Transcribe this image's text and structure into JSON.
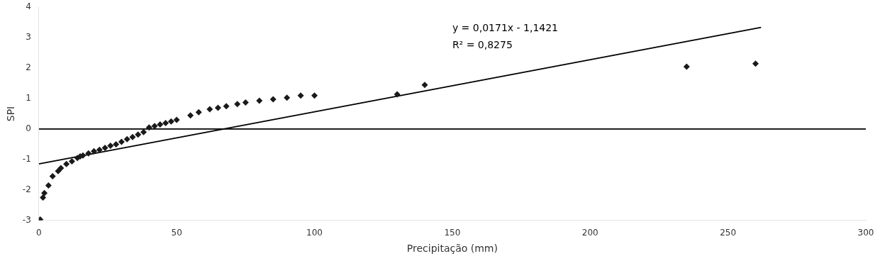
{
  "chart_data": {
    "type": "scatter",
    "xlabel": "Precipitação (mm)",
    "ylabel": "SPI",
    "xlim": [
      0,
      300
    ],
    "ylim": [
      -3,
      4
    ],
    "xticks": [
      0,
      50,
      100,
      150,
      200,
      250,
      300
    ],
    "yticks": [
      -3,
      -2,
      -1,
      0,
      1,
      2,
      3,
      4
    ],
    "grid": false,
    "series": [
      {
        "type": "scatter",
        "color": "#1a1a1a",
        "marker": "diamond",
        "x": [
          0.5,
          1.5,
          2.0,
          3.5,
          5.0,
          7.0,
          8.0,
          10.0,
          12.0,
          14.0,
          15.0,
          16.0,
          18.0,
          20.0,
          22.0,
          24.0,
          26.0,
          28.0,
          30.0,
          32.0,
          34.0,
          36.0,
          38.0,
          40.0,
          42.0,
          44.0,
          46.0,
          48.0,
          50.0,
          55.0,
          58.0,
          62.0,
          65.0,
          68.0,
          72.0,
          75.0,
          80.0,
          85.0,
          90.0,
          95.0,
          100.0,
          130.0,
          140.0,
          235.0,
          260.0
        ],
        "values": [
          -2.97,
          -2.25,
          -2.1,
          -1.85,
          -1.55,
          -1.38,
          -1.28,
          -1.15,
          -1.06,
          -0.95,
          -0.9,
          -0.87,
          -0.8,
          -0.73,
          -0.68,
          -0.62,
          -0.55,
          -0.5,
          -0.42,
          -0.33,
          -0.26,
          -0.18,
          -0.1,
          0.05,
          0.1,
          0.15,
          0.2,
          0.25,
          0.3,
          0.45,
          0.55,
          0.65,
          0.7,
          0.75,
          0.82,
          0.87,
          0.93,
          0.98,
          1.03,
          1.1,
          1.1,
          1.14,
          1.45,
          2.05,
          2.15
        ]
      },
      {
        "type": "line",
        "color": "#000000",
        "line_style": "solid",
        "x": [
          0,
          262
        ],
        "values": [
          -1.1421,
          3.3381
        ]
      },
      {
        "type": "line",
        "color": "#000000",
        "line_style": "solid",
        "x": [
          0,
          300
        ],
        "values": [
          0,
          0
        ]
      }
    ],
    "annotations": [
      {
        "text": "y = 0,0171x - 1,1421",
        "x": 150,
        "y": 3.3
      },
      {
        "text": "R² = 0,8275",
        "x": 150,
        "y": 2.75
      }
    ]
  }
}
